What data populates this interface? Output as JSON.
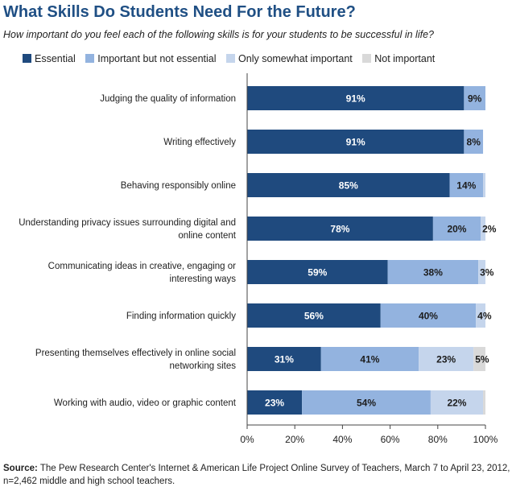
{
  "chart_data": {
    "type": "bar",
    "orientation": "horizontal",
    "stacked": true,
    "title": "What Skills Do Students Need For the Future?",
    "subtitle": "How important do you feel each of the following skills is for your students to be successful in life?",
    "categories": [
      [
        "Judging the quality of information"
      ],
      [
        "Writing effectively"
      ],
      [
        "Behaving responsibly online"
      ],
      [
        "Understanding privacy issues surrounding digital and",
        "online content"
      ],
      [
        "Communicating ideas in creative, engaging or",
        "interesting ways"
      ],
      [
        "Finding information quickly"
      ],
      [
        "Presenting themselves effectively in online social",
        "networking sites"
      ],
      [
        "Working with audio, video or graphic content"
      ]
    ],
    "series": [
      {
        "name": "Essential",
        "color": "#1f4a7e",
        "values": [
          91,
          91,
          85,
          78,
          59,
          56,
          31,
          23
        ],
        "labels": [
          "91%",
          "91%",
          "85%",
          "78%",
          "59%",
          "56%",
          "31%",
          "23%"
        ]
      },
      {
        "name": "Important but not essential",
        "color": "#93b3df",
        "values": [
          9,
          8,
          14,
          20,
          38,
          40,
          41,
          54
        ],
        "labels": [
          "9%",
          "8%",
          "14%",
          "20%",
          "38%",
          "40%",
          "41%",
          "54%"
        ]
      },
      {
        "name": "Only somewhat important",
        "color": "#c5d5ec",
        "values": [
          0,
          0,
          1,
          2,
          3,
          4,
          23,
          22
        ],
        "labels": [
          "",
          "",
          "",
          "2%",
          "3%",
          "4%",
          "23%",
          "22%"
        ]
      },
      {
        "name": "Not important",
        "color": "#d9d9d9",
        "values": [
          0,
          0,
          0,
          0,
          0,
          0,
          5,
          1
        ],
        "labels": [
          "",
          "",
          "",
          "",
          "",
          "",
          "5%",
          ""
        ]
      }
    ],
    "xlim": [
      0,
      100
    ],
    "xticks": [
      "0%",
      "20%",
      "40%",
      "60%",
      "80%",
      "100%"
    ],
    "grid": false,
    "legend": "top"
  },
  "source": {
    "label": "Source:",
    "text": "The Pew Research Center's Internet & American Life Project Online Survey of Teachers, March 7 to April 23, 2012, n=2,462 middle and high school teachers."
  }
}
